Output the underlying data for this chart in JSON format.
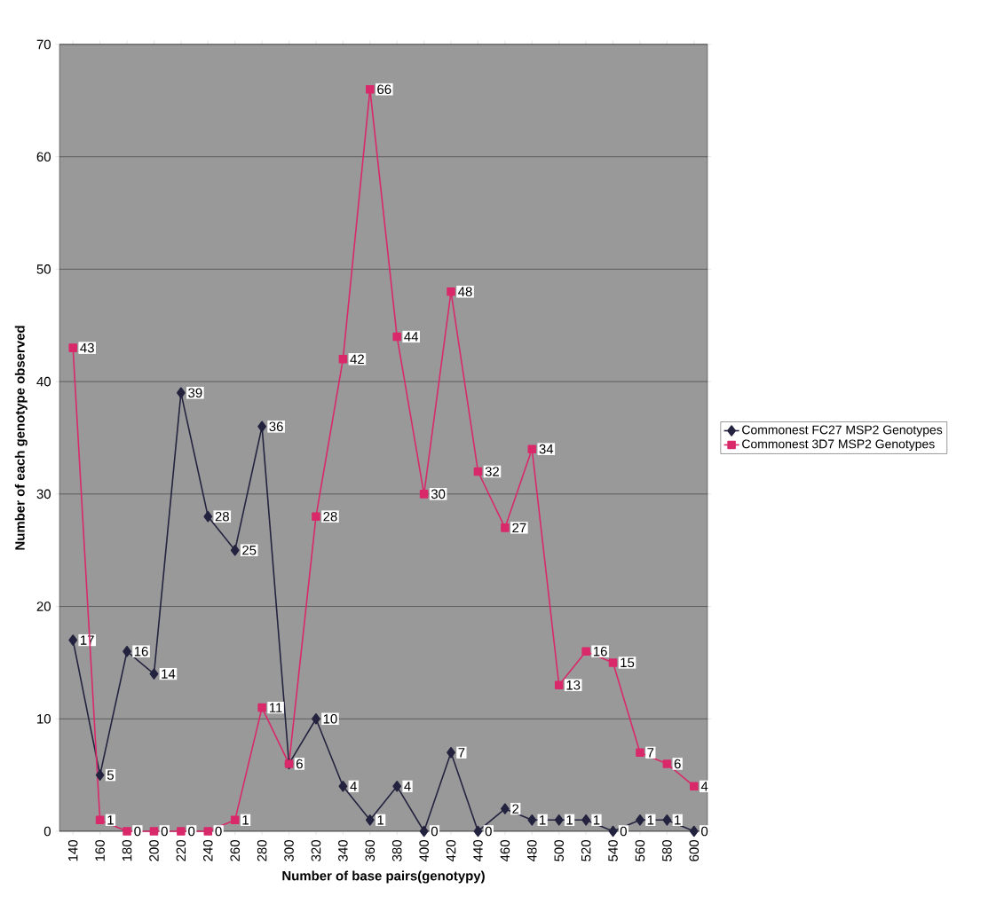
{
  "chart_data": {
    "type": "line",
    "xlabel": "Number of base pairs(genotypy)",
    "ylabel": "Number of each genotype observed",
    "categories": [
      "140",
      "160",
      "180",
      "200",
      "220",
      "240",
      "260",
      "280",
      "300",
      "320",
      "340",
      "360",
      "380",
      "400",
      "420",
      "440",
      "460",
      "480",
      "500",
      "520",
      "540",
      "560",
      "580",
      "600"
    ],
    "series": [
      {
        "name": "Commonest FC27 MSP2 Genotypes",
        "color": "#23233f",
        "marker": "diamond",
        "values": [
          17,
          5,
          16,
          14,
          39,
          28,
          25,
          36,
          6,
          10,
          4,
          1,
          4,
          0,
          7,
          0,
          2,
          1,
          1,
          1,
          0,
          1,
          1,
          0
        ],
        "value_labels": [
          "17",
          "5",
          "16",
          "14",
          "39",
          "28",
          "25",
          "36",
          null,
          "10",
          "4",
          "1",
          "4",
          "0",
          "7",
          "0",
          "2",
          "1",
          "1",
          "1",
          "0",
          "1",
          "1",
          "0"
        ]
      },
      {
        "name": "Commonest 3D7 MSP2 Genotypes",
        "color": "#d9296a",
        "marker": "square",
        "values": [
          43,
          1,
          0,
          0,
          0,
          0,
          1,
          11,
          6,
          28,
          42,
          66,
          44,
          30,
          48,
          32,
          27,
          34,
          13,
          16,
          15,
          7,
          6,
          4
        ],
        "value_labels": [
          "43",
          "1",
          "0",
          "0",
          "0",
          "0",
          "1",
          "11",
          "6",
          "28",
          "42",
          "66",
          "44",
          "30",
          "48",
          "32",
          "27",
          "34",
          "13",
          "16",
          "15",
          "7",
          "6",
          "4"
        ]
      }
    ],
    "ylim": [
      0,
      70
    ],
    "yticks": [
      0,
      10,
      20,
      30,
      40,
      50,
      60,
      70
    ],
    "grid": "y",
    "legend": "right",
    "line_style": "solid"
  }
}
